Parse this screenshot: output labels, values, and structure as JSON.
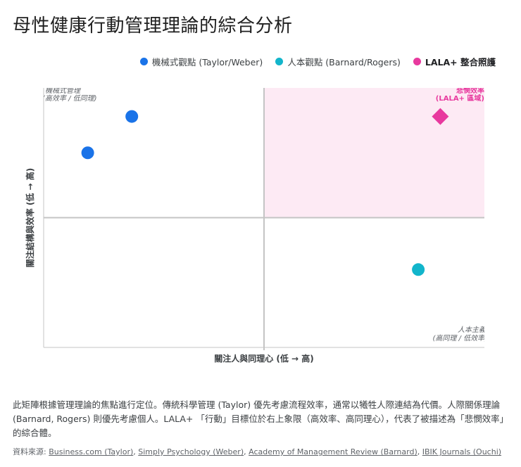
{
  "title": "母性健康行動管理理論的綜合分析",
  "legend": [
    {
      "label": "機械式觀點 (Taylor/Weber)",
      "color": "#1a73e8",
      "shape": "circle"
    },
    {
      "label": "人本觀點 (Barnard/Rogers)",
      "color": "#12b5cb",
      "shape": "circle"
    },
    {
      "label": "LALA+ 整合照護",
      "color": "#e8399e",
      "shape": "diamond"
    }
  ],
  "chart_data": {
    "type": "scatter",
    "xlabel": "關注人與同理心 (低 → 高)",
    "ylabel": "關注結構與效率 (低 → 高)",
    "xlim": [
      0,
      10
    ],
    "ylim": [
      0,
      10
    ],
    "quadrant_lines": {
      "x": 5,
      "y": 5
    },
    "highlight_region": {
      "label_line1": "悲憫效率",
      "label_line2": "(LALA+ 區域)",
      "color": "#e8399e"
    },
    "quadrant_labels": {
      "top_left": {
        "line1": "機械式管理",
        "line2": "(高效率 / 低同理)"
      },
      "bottom_right": {
        "line1": "人本主義",
        "line2": "(高同理 / 低效率)"
      }
    },
    "series": [
      {
        "name": "機械式觀點 (Taylor/Weber)",
        "color": "#1a73e8",
        "shape": "circle",
        "points": [
          {
            "x": 2.0,
            "y": 8.9
          },
          {
            "x": 1.0,
            "y": 7.5
          }
        ]
      },
      {
        "name": "人本觀點 (Barnard/Rogers)",
        "color": "#12b5cb",
        "shape": "circle",
        "points": [
          {
            "x": 8.5,
            "y": 3.0
          }
        ]
      },
      {
        "name": "LALA+ 整合照護",
        "color": "#e8399e",
        "shape": "diamond",
        "points": [
          {
            "x": 9.0,
            "y": 8.9
          }
        ]
      }
    ]
  },
  "description": "此矩陣根據管理理論的焦點進行定位。傳統科學管理 (Taylor) 優先考慮流程效率，通常以犧牲人際連結為代價。人際關係理論 (Barnard, Rogers) 則優先考慮個人。LALA+ 「行動」目標位於右上象限（高效率、高同理心），代表了被描述為「悲憫效率」的綜合體。",
  "sources": {
    "prefix": "資料來源:",
    "links": [
      "Business.com (Taylor)",
      "Simply Psychology (Weber)",
      "Academy of Management Review (Barnard)",
      "IBIK Journals (Ouchi)"
    ],
    "separator": ", "
  }
}
